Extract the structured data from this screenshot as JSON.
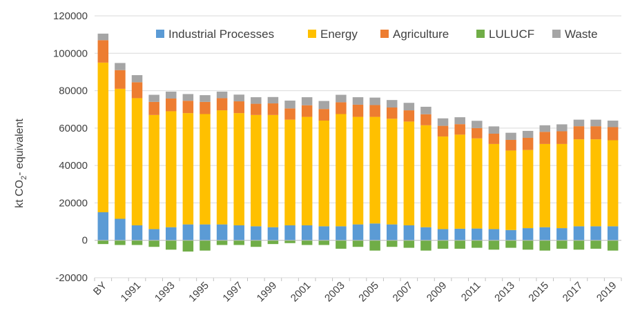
{
  "chart_data": {
    "type": "bar",
    "stacked": true,
    "ylabel": "kt CO2- equivalent",
    "ylabel_main": "kt CO",
    "ylabel_sub": "2",
    "ylabel_rest": "- equivalent",
    "ylim": [
      -20000,
      120000
    ],
    "y_ticks": [
      -20000,
      0,
      20000,
      40000,
      60000,
      80000,
      100000,
      120000
    ],
    "grid": true,
    "legend_position": "top",
    "categories": [
      "BY",
      "1990",
      "1991",
      "1992",
      "1993",
      "1994",
      "1995",
      "1996",
      "1997",
      "1998",
      "1999",
      "2000",
      "2001",
      "2002",
      "2003",
      "2004",
      "2005",
      "2006",
      "2007",
      "2008",
      "2009",
      "2010",
      "2011",
      "2012",
      "2013",
      "2014",
      "2015",
      "2016",
      "2017",
      "2018",
      "2019"
    ],
    "x_tick_labels": [
      "BY",
      "1991",
      "1993",
      "1995",
      "1997",
      "1999",
      "2001",
      "2003",
      "2005",
      "2007",
      "2009",
      "2011",
      "2013",
      "2015",
      "2017",
      "2019"
    ],
    "series": [
      {
        "name": "Industrial Processes",
        "color": "#5b9bd5",
        "values": [
          15000,
          11500,
          8000,
          6000,
          7000,
          8500,
          8500,
          8500,
          8000,
          7500,
          7000,
          8000,
          8000,
          7500,
          7500,
          8500,
          9000,
          8500,
          8000,
          7000,
          6000,
          6200,
          6300,
          6000,
          5500,
          6500,
          7000,
          6500,
          7500,
          7500,
          7500
        ]
      },
      {
        "name": "Energy",
        "color": "#ffc000",
        "values": [
          80000,
          69500,
          68000,
          61000,
          62000,
          59500,
          59000,
          61000,
          60000,
          59500,
          60000,
          56500,
          58000,
          56500,
          60000,
          57500,
          57000,
          56500,
          55500,
          54500,
          49500,
          50300,
          48200,
          45500,
          42500,
          41800,
          44500,
          45000,
          46500,
          46500,
          46000
        ]
      },
      {
        "name": "Agriculture",
        "color": "#ed7d31",
        "values": [
          12000,
          10000,
          8500,
          7000,
          6800,
          6600,
          6500,
          6500,
          6300,
          6000,
          6200,
          6000,
          6200,
          6200,
          6300,
          6500,
          6300,
          6000,
          6000,
          5900,
          5700,
          5600,
          5500,
          5500,
          5700,
          6500,
          6500,
          6800,
          7000,
          7000,
          7000
        ]
      },
      {
        "name": "LULUCF",
        "color": "#70ad47",
        "values": [
          -2000,
          -2500,
          -2500,
          -3500,
          -5000,
          -6000,
          -5500,
          -2500,
          -2500,
          -3500,
          -2000,
          -1500,
          -2500,
          -2500,
          -4500,
          -3500,
          -5500,
          -3500,
          -4000,
          -5500,
          -4500,
          -4500,
          -4000,
          -5000,
          -4000,
          -5000,
          -5500,
          -4500,
          -5000,
          -4500,
          -5500
        ]
      },
      {
        "name": "Waste",
        "color": "#a5a5a5",
        "values": [
          3500,
          3800,
          3800,
          3800,
          3700,
          3600,
          3600,
          3500,
          3600,
          3500,
          3400,
          4200,
          4300,
          4300,
          4000,
          4000,
          4000,
          4000,
          4000,
          4000,
          4000,
          3700,
          3900,
          3900,
          3800,
          3700,
          3500,
          3700,
          3500,
          3500,
          3500
        ]
      }
    ]
  }
}
